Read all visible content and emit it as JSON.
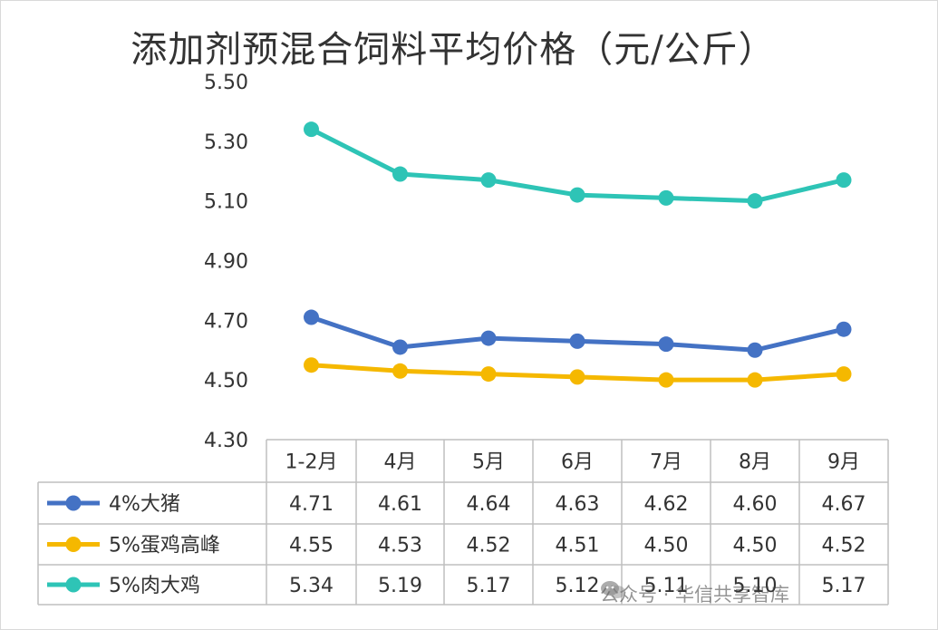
{
  "chart_data": {
    "type": "line",
    "title": "添加剂预混合饲料平均价格（元/公斤）",
    "categories": [
      "1-2月",
      "4月",
      "5月",
      "6月",
      "7月",
      "8月",
      "9月"
    ],
    "ylim": [
      4.3,
      5.5
    ],
    "yticks": [
      "4.30",
      "4.50",
      "4.70",
      "4.90",
      "5.10",
      "5.30",
      "5.50"
    ],
    "grid": false,
    "legend": "data-table-left",
    "series": [
      {
        "name": "4%大猪",
        "color": "#4472c4",
        "values": [
          4.71,
          4.61,
          4.64,
          4.63,
          4.62,
          4.6,
          4.67
        ],
        "labels": [
          "4.71",
          "4.61",
          "4.64",
          "4.63",
          "4.62",
          "4.60",
          "4.67"
        ]
      },
      {
        "name": "5%蛋鸡高峰",
        "color": "#f5b800",
        "values": [
          4.55,
          4.53,
          4.52,
          4.51,
          4.5,
          4.5,
          4.52
        ],
        "labels": [
          "4.55",
          "4.53",
          "4.52",
          "4.51",
          "4.50",
          "4.50",
          "4.52"
        ]
      },
      {
        "name": "5%肉大鸡",
        "color": "#2ec4b6",
        "values": [
          5.34,
          5.19,
          5.17,
          5.12,
          5.11,
          5.1,
          5.17
        ],
        "labels": [
          "5.34",
          "5.19",
          "5.17",
          "5.12",
          "5.11",
          "5.10",
          "5.17"
        ]
      }
    ]
  },
  "watermark": {
    "icon": "wechat-icon",
    "text": "公众号 · 华信共享智库"
  }
}
